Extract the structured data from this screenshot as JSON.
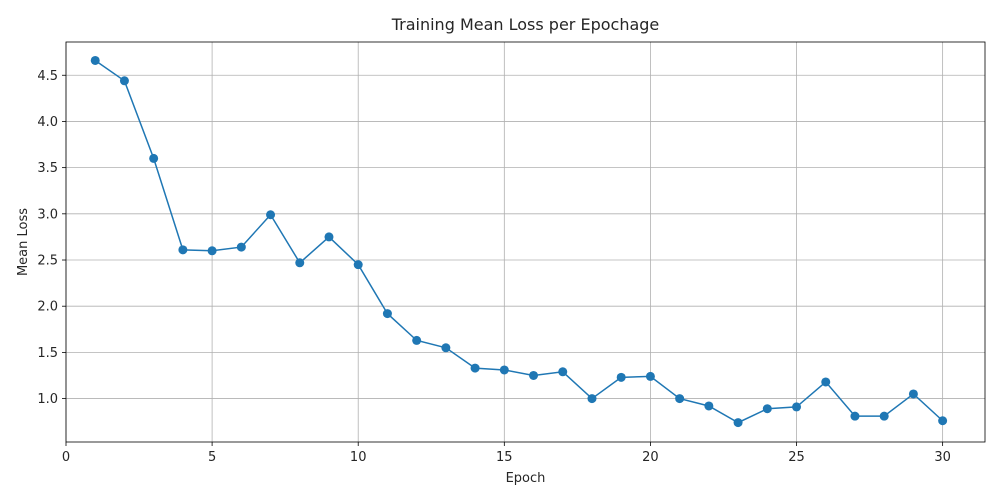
{
  "chart_data": {
    "type": "line",
    "title": "Training Mean Loss per Epochage",
    "xlabel": "Epoch",
    "ylabel": "Mean Loss",
    "xlim": [
      0,
      31.45
    ],
    "ylim": [
      0.53,
      4.86
    ],
    "xticks": [
      0,
      5,
      10,
      15,
      20,
      25,
      30
    ],
    "yticks": [
      1.0,
      1.5,
      2.0,
      2.5,
      3.0,
      3.5,
      4.0,
      4.5
    ],
    "grid": true,
    "series": [
      {
        "color": "#1f77b4",
        "marker": "circle",
        "x": [
          1,
          2,
          3,
          4,
          5,
          6,
          7,
          8,
          9,
          10,
          11,
          12,
          13,
          14,
          15,
          16,
          17,
          18,
          19,
          20,
          21,
          22,
          23,
          24,
          25,
          26,
          27,
          28,
          29,
          30
        ],
        "y": [
          4.66,
          4.44,
          3.6,
          2.61,
          2.6,
          2.64,
          2.99,
          2.47,
          2.75,
          2.45,
          1.92,
          1.63,
          1.55,
          1.33,
          1.31,
          1.25,
          1.29,
          1.0,
          1.23,
          1.24,
          1.0,
          0.92,
          0.74,
          0.89,
          0.91,
          1.18,
          0.81,
          0.81,
          1.05,
          0.76
        ]
      }
    ]
  }
}
